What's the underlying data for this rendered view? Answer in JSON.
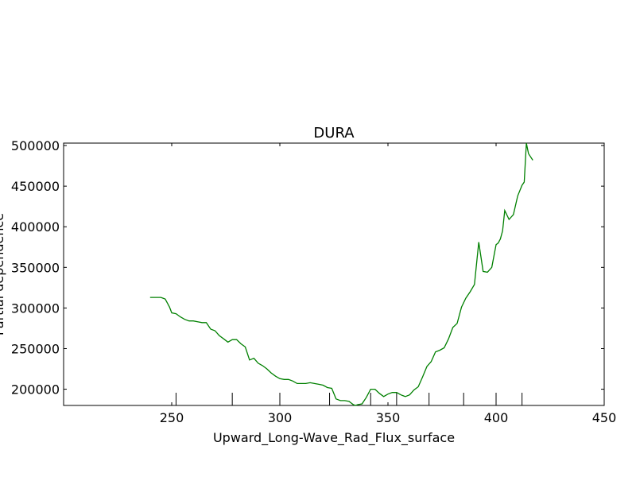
{
  "chart_data": {
    "type": "line",
    "title": "DURA",
    "xlabel": "Upward_Long-Wave_Rad_Flux_surface",
    "ylabel": "Partial dependence",
    "xlim": [
      200,
      450
    ],
    "ylim": [
      180000,
      503000
    ],
    "x_ticks": [
      250,
      300,
      350,
      400,
      450
    ],
    "y_ticks": [
      200000,
      250000,
      300000,
      350000,
      400000,
      450000,
      500000
    ],
    "grid": false,
    "line_color": "#008000",
    "deciles": [
      252,
      278,
      300,
      323,
      342,
      354,
      369,
      385,
      400,
      412
    ],
    "series": [
      {
        "x": [
          240,
          243,
          245,
          246,
          247,
          248,
          249,
          250,
          252,
          254,
          256,
          258,
          260,
          262,
          264,
          266,
          268,
          270,
          272,
          274,
          276,
          278,
          280,
          282,
          284,
          286,
          288,
          290,
          292,
          294,
          296,
          298,
          300,
          302,
          304,
          306,
          308,
          310,
          312,
          314,
          316,
          318,
          320,
          322,
          324,
          326,
          328,
          330,
          332,
          334,
          335,
          336,
          338,
          340,
          342,
          344,
          346,
          348,
          350,
          352,
          354,
          356,
          358,
          360,
          362,
          364,
          366,
          368,
          370,
          372,
          374,
          376,
          378,
          380,
          382,
          384,
          386,
          388,
          390,
          392,
          394,
          396,
          398,
          400,
          401,
          402,
          403,
          404,
          406,
          408,
          410,
          412,
          413,
          414,
          415,
          417
        ],
        "y": [
          313000,
          313000,
          313000,
          312000,
          311000,
          306000,
          301000,
          294000,
          293000,
          289000,
          286000,
          284000,
          284000,
          283000,
          282000,
          282000,
          274000,
          272000,
          266000,
          262000,
          258000,
          261000,
          261000,
          256000,
          252000,
          236000,
          238000,
          232000,
          229000,
          225000,
          220000,
          216000,
          213000,
          212000,
          212000,
          210000,
          207000,
          207000,
          207000,
          208000,
          207000,
          206000,
          205000,
          202000,
          201000,
          188000,
          186000,
          186000,
          185000,
          181000,
          180000,
          181000,
          182000,
          190000,
          200000,
          200000,
          195000,
          191000,
          194000,
          196000,
          196000,
          193000,
          191000,
          193000,
          199000,
          203000,
          215000,
          228000,
          234000,
          246000,
          248000,
          251000,
          262000,
          276000,
          281000,
          301000,
          312000,
          320000,
          329000,
          381000,
          345000,
          344000,
          350000,
          378000,
          380000,
          385000,
          395000,
          420000,
          409000,
          415000,
          438000,
          451000,
          455000,
          503000,
          490000,
          482000
        ]
      }
    ]
  }
}
